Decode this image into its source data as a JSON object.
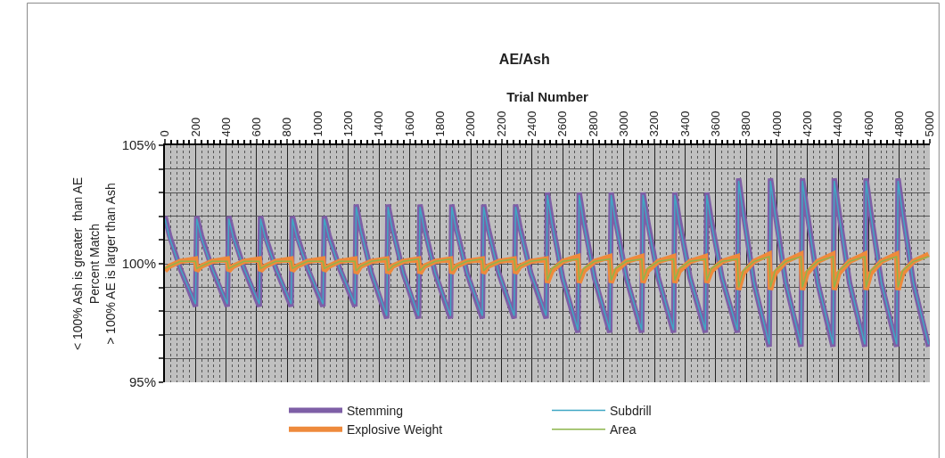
{
  "chart_data": {
    "type": "line",
    "title": "AE/Ash",
    "xlabel": "Trial Number",
    "ylabel": "< 100% Ash is greater  than AE\nPercent Match\n> 100% AE is larger than Ash",
    "x": [
      0,
      30,
      100,
      200,
      208,
      238,
      308,
      408,
      417,
      447,
      517,
      617,
      625,
      655,
      725,
      825,
      833,
      863,
      933,
      1033,
      1042,
      1072,
      1142,
      1242,
      1250,
      1280,
      1350,
      1450,
      1458,
      1488,
      1558,
      1658,
      1667,
      1697,
      1767,
      1867,
      1875,
      1905,
      1975,
      2075,
      2083,
      2113,
      2183,
      2283,
      2292,
      2322,
      2392,
      2492,
      2500,
      2530,
      2600,
      2700,
      2708,
      2738,
      2808,
      2908,
      2917,
      2947,
      3017,
      3117,
      3125,
      3155,
      3225,
      3325,
      3333,
      3363,
      3433,
      3533,
      3542,
      3572,
      3642,
      3742,
      3750,
      3780,
      3850,
      3950,
      3958,
      3988,
      4058,
      4158,
      4167,
      4197,
      4267,
      4367,
      4375,
      4405,
      4475,
      4575,
      4583,
      4613,
      4683,
      4783,
      4792,
      4822,
      4892,
      4992
    ],
    "series": [
      {
        "name": "Stemming",
        "color": "#7e5fa6",
        "values": [
          102,
          101.2,
          99.8,
          98.2,
          102,
          101.2,
          99.8,
          98.2,
          102,
          101.2,
          99.8,
          98.2,
          102,
          101.2,
          99.8,
          98.2,
          102,
          101.2,
          99.8,
          98.2,
          102,
          101.2,
          99.8,
          98.2,
          102.5,
          101.5,
          99.6,
          97.7,
          102.5,
          101.5,
          99.6,
          97.7,
          102.5,
          101.5,
          99.6,
          97.7,
          102.5,
          101.5,
          99.6,
          97.7,
          102.5,
          101.5,
          99.6,
          97.7,
          102.5,
          101.5,
          99.6,
          97.7,
          103,
          101.8,
          99.4,
          97.1,
          103,
          101.8,
          99.4,
          97.1,
          103,
          101.8,
          99.4,
          97.1,
          103,
          101.8,
          99.4,
          97.1,
          103,
          101.8,
          99.4,
          97.1,
          103,
          101.8,
          99.4,
          97.1,
          103.6,
          102.2,
          99.2,
          96.5,
          103.6,
          102.2,
          99.2,
          96.5,
          103.6,
          102.2,
          99.2,
          96.5,
          103.6,
          102.2,
          99.2,
          96.5,
          103.6,
          102.2,
          99.2,
          96.5,
          103.6,
          102.2,
          99.2,
          96.5
        ]
      },
      {
        "name": "Subdrill",
        "color": "#3fa7c4",
        "values": [
          101.9,
          101.1,
          99.8,
          98.3,
          101.9,
          101.1,
          99.8,
          98.3,
          101.9,
          101.1,
          99.8,
          98.3,
          101.9,
          101.1,
          99.8,
          98.3,
          101.9,
          101.1,
          99.8,
          98.3,
          101.9,
          101.1,
          99.8,
          98.3,
          102.4,
          101.4,
          99.6,
          97.8,
          102.4,
          101.4,
          99.6,
          97.8,
          102.4,
          101.4,
          99.6,
          97.8,
          102.4,
          101.4,
          99.6,
          97.8,
          102.4,
          101.4,
          99.6,
          97.8,
          102.4,
          101.4,
          99.6,
          97.8,
          102.9,
          101.7,
          99.4,
          97.2,
          102.9,
          101.7,
          99.4,
          97.2,
          102.9,
          101.7,
          99.4,
          97.2,
          102.9,
          101.7,
          99.4,
          97.2,
          102.9,
          101.7,
          99.4,
          97.2,
          102.9,
          101.7,
          99.4,
          97.2,
          103.5,
          102.1,
          99.2,
          96.6,
          103.5,
          102.1,
          99.2,
          96.6,
          103.5,
          102.1,
          99.2,
          96.6,
          103.5,
          102.1,
          99.2,
          96.6,
          103.5,
          102.1,
          99.2,
          96.6,
          103.5,
          102.1,
          99.2,
          96.6
        ]
      },
      {
        "name": "Explosive Weight",
        "color": "#ee8a3c",
        "values": [
          99.7,
          99.9,
          100.1,
          100.2,
          99.7,
          99.9,
          100.1,
          100.2,
          99.7,
          99.9,
          100.1,
          100.2,
          99.7,
          99.9,
          100.1,
          100.2,
          99.7,
          99.9,
          100.1,
          100.2,
          99.7,
          99.9,
          100.1,
          100.2,
          99.6,
          99.9,
          100.1,
          100.2,
          99.6,
          99.9,
          100.1,
          100.2,
          99.6,
          99.9,
          100.1,
          100.2,
          99.6,
          99.9,
          100.1,
          100.2,
          99.6,
          99.9,
          100.1,
          100.2,
          99.6,
          99.9,
          100.1,
          100.2,
          99.2,
          99.7,
          100.1,
          100.3,
          99.2,
          99.7,
          100.1,
          100.3,
          99.2,
          99.7,
          100.1,
          100.3,
          99.2,
          99.7,
          100.1,
          100.3,
          99.2,
          99.7,
          100.1,
          100.3,
          99.2,
          99.7,
          100.1,
          100.3,
          98.9,
          99.6,
          100.1,
          100.4,
          98.9,
          99.6,
          100.1,
          100.4,
          98.9,
          99.6,
          100.1,
          100.4,
          98.9,
          99.6,
          100.1,
          100.4,
          98.9,
          99.6,
          100.1,
          100.4,
          98.9,
          99.6,
          100.1,
          100.4
        ]
      },
      {
        "name": "Area",
        "color": "#8db54c",
        "values": [
          99.8,
          99.9,
          100.1,
          100.1,
          99.8,
          99.9,
          100.1,
          100.1,
          99.8,
          99.9,
          100.1,
          100.1,
          99.8,
          99.9,
          100.1,
          100.1,
          99.8,
          99.9,
          100.1,
          100.1,
          99.8,
          99.9,
          100.1,
          100.1,
          99.7,
          99.9,
          100.1,
          100.2,
          99.7,
          99.9,
          100.1,
          100.2,
          99.7,
          99.9,
          100.1,
          100.2,
          99.7,
          99.9,
          100.1,
          100.2,
          99.7,
          99.9,
          100.1,
          100.2,
          99.7,
          99.9,
          100.1,
          100.2,
          99.3,
          99.8,
          100.1,
          100.2,
          99.3,
          99.8,
          100.1,
          100.2,
          99.3,
          99.8,
          100.1,
          100.2,
          99.3,
          99.8,
          100.1,
          100.2,
          99.3,
          99.8,
          100.1,
          100.2,
          99.3,
          99.8,
          100.1,
          100.2,
          99,
          99.7,
          100.1,
          100.3,
          99,
          99.7,
          100.1,
          100.3,
          99,
          99.7,
          100.1,
          100.3,
          99,
          99.7,
          100.1,
          100.3,
          99,
          99.7,
          100.1,
          100.3,
          99,
          99.7,
          100.1,
          100.3
        ]
      }
    ],
    "xlim": [
      0,
      5000
    ],
    "xticks": [
      0,
      200,
      400,
      600,
      800,
      1000,
      1200,
      1400,
      1600,
      1800,
      2000,
      2200,
      2400,
      2600,
      2800,
      3000,
      3200,
      3400,
      3600,
      3800,
      4000,
      4200,
      4400,
      4600,
      4800,
      5000
    ],
    "ylim": [
      95,
      105
    ],
    "yticks": [
      {
        "value": 95,
        "label": "95%"
      },
      {
        "value": 96,
        "label": null
      },
      {
        "value": 97,
        "label": null
      },
      {
        "value": 98,
        "label": null
      },
      {
        "value": 99,
        "label": null
      },
      {
        "value": 100,
        "label": "100%"
      },
      {
        "value": 101,
        "label": null
      },
      {
        "value": 102,
        "label": null
      },
      {
        "value": 103,
        "label": null
      },
      {
        "value": 104,
        "label": null
      },
      {
        "value": 105,
        "label": "105%"
      }
    ],
    "grid": true,
    "legend": "bottom",
    "marker": "none",
    "line_style": "solid"
  }
}
